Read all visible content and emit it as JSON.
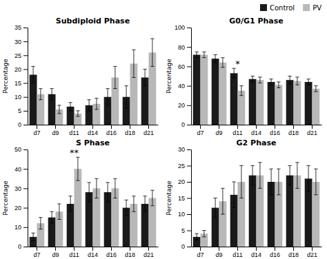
{
  "chart_data": [
    {
      "type": "bar",
      "title": "Subdiploid Phase",
      "ylabel": "Percentage",
      "categories": [
        "d7",
        "d9",
        "d11",
        "d14",
        "d16",
        "d18",
        "d21"
      ],
      "series": [
        {
          "name": "Control",
          "color": "#1a1a1a",
          "values": [
            18,
            11,
            6.5,
            7,
            10,
            10,
            17
          ],
          "errors": [
            3,
            2,
            1.5,
            2,
            3,
            4,
            3
          ]
        },
        {
          "name": "PV",
          "color": "#b8b8b8",
          "values": [
            11,
            5.5,
            4,
            7.5,
            17,
            22,
            26
          ],
          "errors": [
            2,
            1.5,
            1,
            2,
            4,
            5,
            5
          ]
        }
      ],
      "ylim": [
        0,
        35
      ],
      "yticks": [
        0,
        5,
        10,
        15,
        20,
        25,
        30,
        35
      ],
      "grid": false
    },
    {
      "type": "bar",
      "title": "G0/G1 Phase",
      "ylabel": "Percentage",
      "categories": [
        "d7",
        "d9",
        "d11",
        "d14",
        "d16",
        "d18",
        "d21"
      ],
      "series": [
        {
          "name": "Control",
          "color": "#1a1a1a",
          "values": [
            72,
            68,
            53,
            47,
            44,
            46,
            44
          ],
          "errors": [
            3,
            4,
            5,
            3,
            3,
            4,
            3
          ]
        },
        {
          "name": "PV",
          "color": "#b8b8b8",
          "values": [
            72,
            64,
            35,
            46,
            41,
            45,
            37
          ],
          "errors": [
            3,
            5,
            5,
            3,
            3,
            4,
            3
          ]
        }
      ],
      "ylim": [
        0,
        100
      ],
      "yticks": [
        0,
        20,
        40,
        60,
        80,
        100
      ],
      "grid": false,
      "annotations": [
        {
          "text": "*",
          "category": "d11"
        }
      ],
      "legend": "upper right"
    },
    {
      "type": "bar",
      "title": "S Phase",
      "ylabel": "Percentage",
      "categories": [
        "d7",
        "d9",
        "d11",
        "d14",
        "d16",
        "d18",
        "d21"
      ],
      "series": [
        {
          "name": "Control",
          "color": "#1a1a1a",
          "values": [
            5,
            15,
            22,
            28,
            28,
            20,
            22
          ],
          "errors": [
            2,
            3,
            4,
            5,
            5,
            4,
            4
          ]
        },
        {
          "name": "PV",
          "color": "#b8b8b8",
          "values": [
            12,
            18,
            40,
            30,
            30,
            22,
            25
          ],
          "errors": [
            3,
            4,
            6,
            5,
            5,
            4,
            4
          ]
        }
      ],
      "ylim": [
        0,
        50
      ],
      "yticks": [
        0,
        10,
        20,
        30,
        40,
        50
      ],
      "grid": false,
      "annotations": [
        {
          "text": "**",
          "category": "d11"
        }
      ]
    },
    {
      "type": "bar",
      "title": "G2 Phase",
      "ylabel": "Percentage",
      "categories": [
        "d7",
        "d9",
        "d11",
        "d14",
        "d16",
        "d18",
        "d21"
      ],
      "series": [
        {
          "name": "Control",
          "color": "#1a1a1a",
          "values": [
            3,
            12,
            16,
            22,
            20,
            22,
            21
          ],
          "errors": [
            1,
            3,
            4,
            3,
            4,
            3,
            4
          ]
        },
        {
          "name": "PV",
          "color": "#b8b8b8",
          "values": [
            4,
            14,
            20,
            22,
            20,
            22,
            20
          ],
          "errors": [
            1,
            4,
            5,
            4,
            4,
            4,
            4
          ]
        }
      ],
      "ylim": [
        0,
        30
      ],
      "yticks": [
        0,
        5,
        10,
        15,
        20,
        25,
        30
      ],
      "grid": false
    }
  ]
}
